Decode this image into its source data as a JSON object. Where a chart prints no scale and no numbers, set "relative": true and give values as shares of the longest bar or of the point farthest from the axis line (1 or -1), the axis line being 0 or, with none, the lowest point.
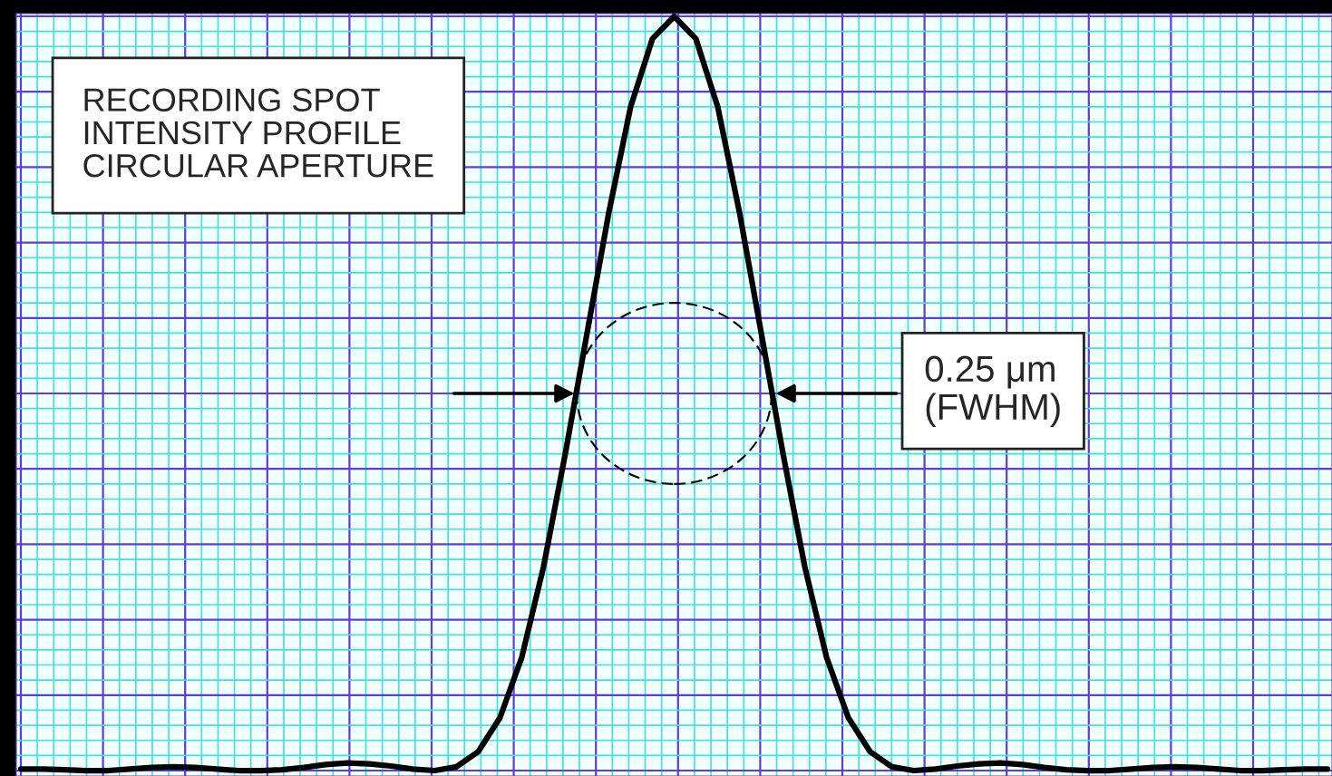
{
  "chart_data": {
    "type": "line",
    "relative": true,
    "grid": true,
    "categories": [
      null,
      null,
      null,
      null,
      null,
      null,
      null,
      null,
      null,
      null,
      null,
      null,
      null,
      null,
      null,
      null,
      null,
      null,
      null,
      null,
      null,
      null,
      null,
      null,
      null,
      null,
      null,
      null,
      null,
      null,
      null,
      null,
      null,
      null,
      null,
      null,
      null,
      null,
      null,
      null,
      null,
      null,
      null,
      null,
      null,
      null,
      null,
      null,
      null,
      null,
      null,
      null,
      null,
      null,
      null,
      null,
      null,
      null,
      null,
      null,
      null
    ],
    "series": [
      {
        "color": "#000000",
        "values": [
          0.002,
          0.002,
          0.001,
          0.0,
          0.0,
          0.002,
          0.004,
          0.005,
          0.004,
          0.002,
          0.0,
          0.0,
          0.001,
          0.004,
          0.008,
          0.01,
          0.009,
          0.006,
          0.002,
          0.0,
          0.005,
          0.025,
          0.07,
          0.15,
          0.27,
          0.42,
          0.58,
          0.74,
          0.88,
          0.97,
          1.0,
          0.97,
          0.88,
          0.74,
          0.58,
          0.42,
          0.27,
          0.15,
          0.07,
          0.025,
          0.005,
          0.0,
          0.002,
          0.006,
          0.009,
          0.01,
          0.008,
          0.004,
          0.001,
          0.0,
          0.0,
          0.002,
          0.004,
          0.005,
          0.004,
          0.002,
          0.0,
          0.0,
          0.001,
          0.002,
          0.002
        ]
      }
    ],
    "annotations": [
      "RECORDING SPOT\nINTENSITY PROFILE\nCIRCULAR APERTURE",
      "0.25 μm\n(FWHM)"
    ]
  }
}
